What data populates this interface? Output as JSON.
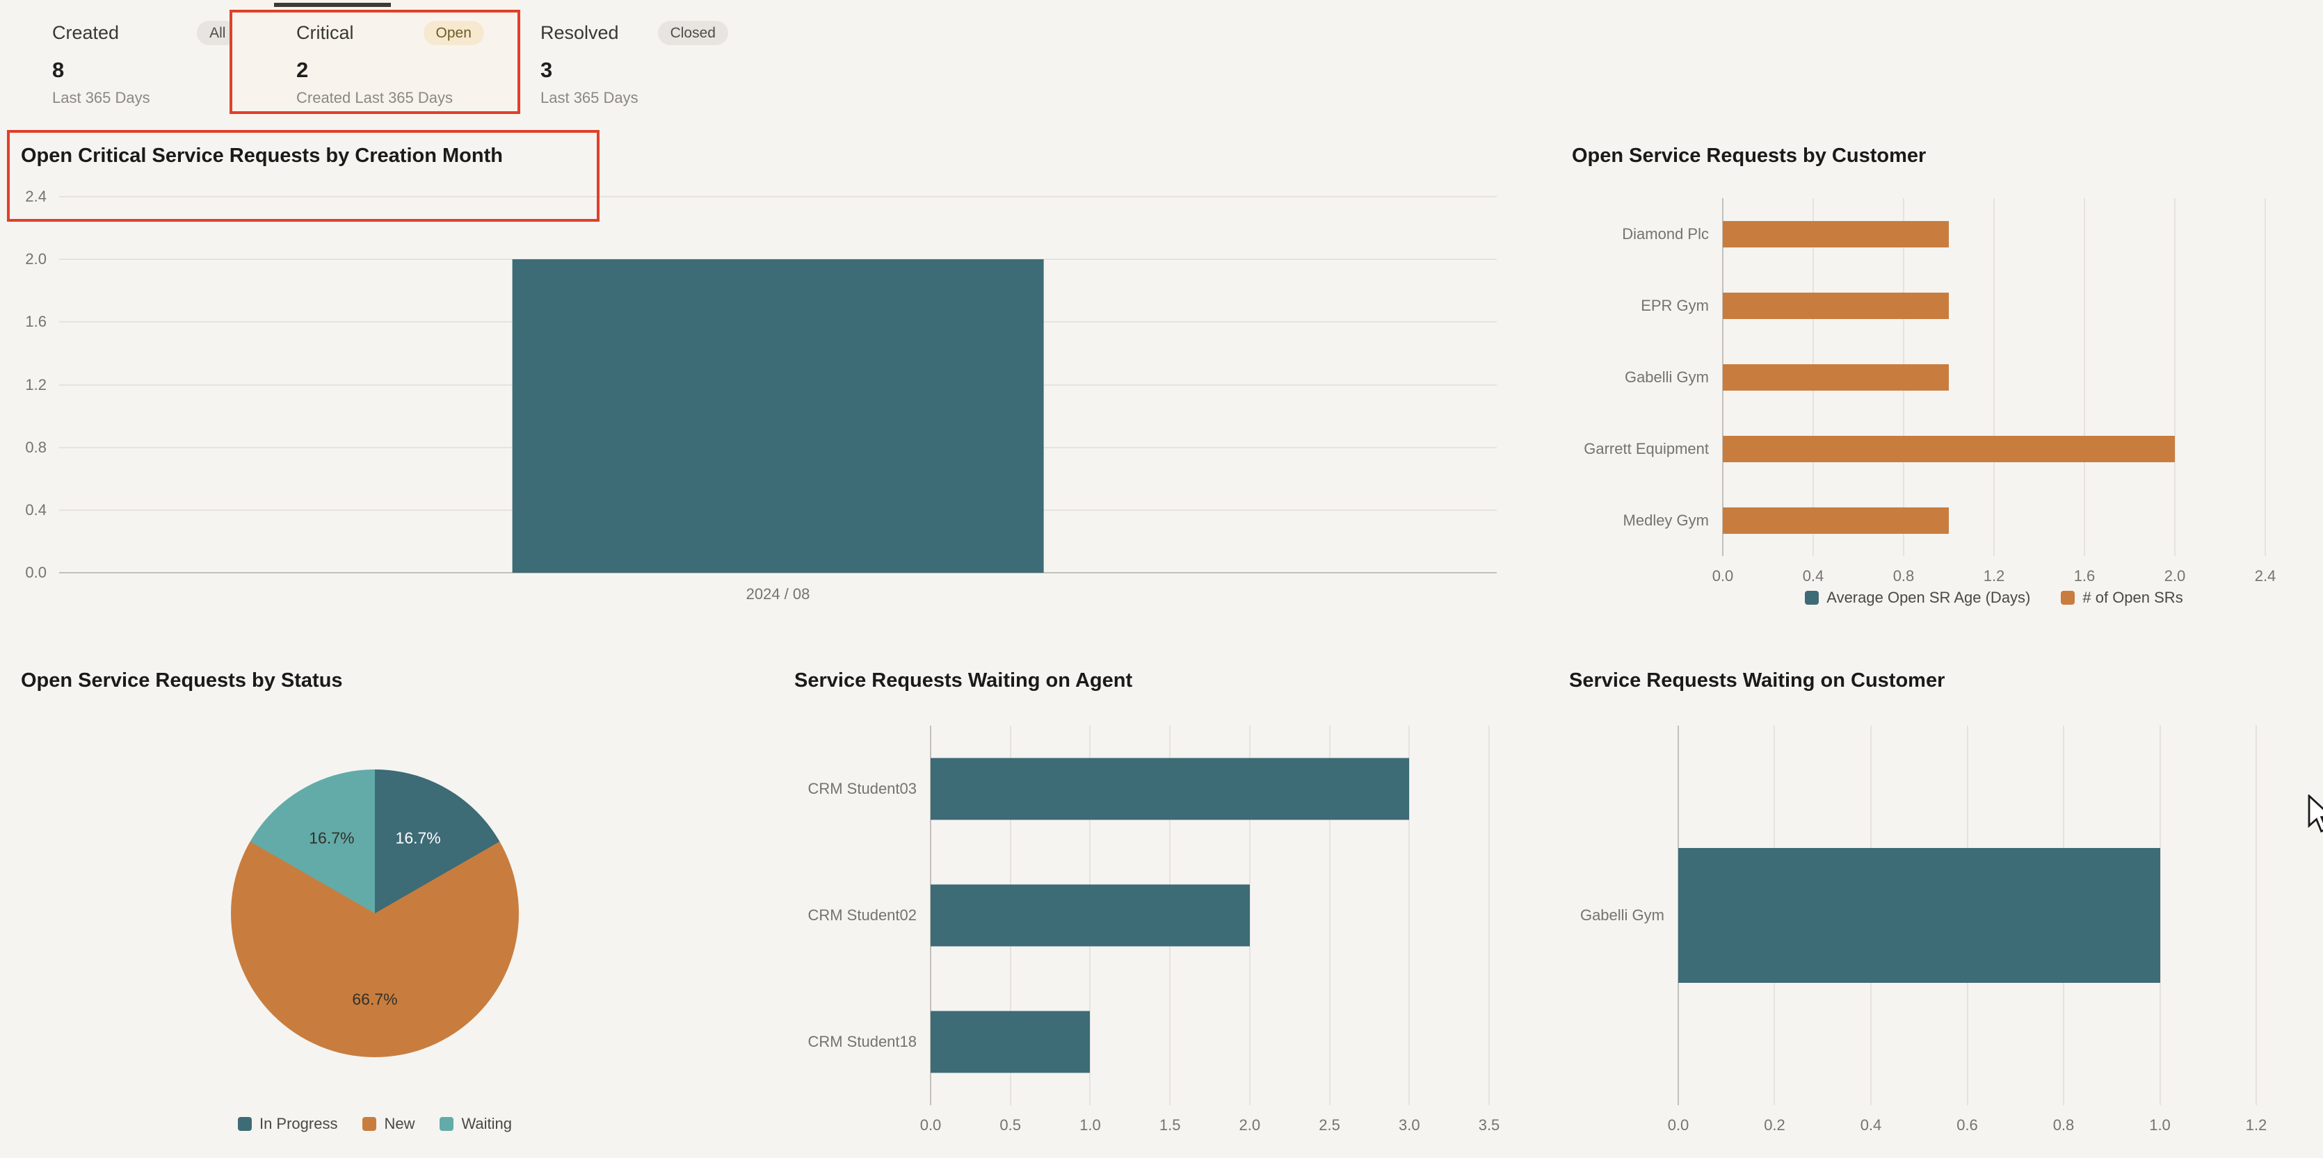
{
  "page": {
    "background": "#f5f4f1"
  },
  "annotation": {
    "color": "#e0402a",
    "highlighted": [
      "critical-kpi-tab",
      "open-critical-chart-title"
    ]
  },
  "colors": {
    "teal": "#3d6b76",
    "orange": "#c87d3e",
    "light_teal": "#62aba8",
    "grid": "#e6e3de",
    "axis_text": "#75736e"
  },
  "kpi_tabs": [
    {
      "label": "Created",
      "badge": "All",
      "value": "8",
      "sublabel": "Last 365 Days",
      "selected": false
    },
    {
      "label": "Critical",
      "badge": "Open",
      "value": "2",
      "sublabel": "Created Last 365 Days",
      "selected": true
    },
    {
      "label": "Resolved",
      "badge": "Closed",
      "value": "3",
      "sublabel": "Last 365 Days",
      "selected": false
    }
  ],
  "chart_data": [
    {
      "id": "open-critical-by-creation-month",
      "type": "bar",
      "orientation": "vertical",
      "title": "Open Critical Service Requests by Creation Month",
      "categories": [
        "2024 / 08"
      ],
      "values": [
        2
      ],
      "ylim": [
        0,
        2.4
      ],
      "yticks": [
        0.0,
        0.4,
        0.8,
        1.2,
        1.6,
        2.0,
        2.4
      ],
      "bar_color": "#3d6b76",
      "grid": true
    },
    {
      "id": "open-by-customer",
      "type": "bar",
      "orientation": "horizontal",
      "title": "Open Service Requests by Customer",
      "categories": [
        "Diamond Plc",
        "EPR Gym",
        "Gabelli Gym",
        "Garrett Equipment",
        "Medley Gym"
      ],
      "values": [
        1,
        1,
        1,
        2,
        1
      ],
      "xlim": [
        0,
        2.4
      ],
      "xticks": [
        0.0,
        0.4,
        0.8,
        1.2,
        1.6,
        2.0,
        2.4
      ],
      "bar_color": "#c87d3e",
      "grid": true,
      "legend_position": "bottom",
      "legend": [
        {
          "label": "Average Open SR Age (Days)",
          "color": "#3d6b76"
        },
        {
          "label": "# of Open SRs",
          "color": "#c87d3e"
        }
      ]
    },
    {
      "id": "open-by-status",
      "type": "pie",
      "title": "Open Service Requests by Status",
      "legend_position": "bottom",
      "slices": [
        {
          "label": "In Progress",
          "pct": 16.7,
          "color": "#3d6b76",
          "text_color": "#ffffff"
        },
        {
          "label": "New",
          "pct": 66.7,
          "color": "#c87d3e",
          "text_color": "#33302b"
        },
        {
          "label": "Waiting",
          "pct": 16.7,
          "color": "#62aba8",
          "text_color": "#33302b"
        }
      ]
    },
    {
      "id": "waiting-on-agent",
      "type": "bar",
      "orientation": "horizontal",
      "title": "Service Requests Waiting on Agent",
      "categories": [
        "CRM Student03",
        "CRM Student02",
        "CRM Student18"
      ],
      "values": [
        3,
        2,
        1
      ],
      "xlim": [
        0,
        3.5
      ],
      "xticks": [
        0.0,
        0.5,
        1.0,
        1.5,
        2.0,
        2.5,
        3.0,
        3.5
      ],
      "bar_color": "#3d6b76",
      "grid": true
    },
    {
      "id": "waiting-on-customer",
      "type": "bar",
      "orientation": "horizontal",
      "title": "Service Requests Waiting on Customer",
      "categories": [
        "Gabelli Gym"
      ],
      "values": [
        1
      ],
      "xlim": [
        0,
        1.2
      ],
      "xticks": [
        0.0,
        0.2,
        0.4,
        0.6,
        0.8,
        1.0,
        1.2
      ],
      "bar_color": "#3d6b76",
      "grid": true
    }
  ]
}
